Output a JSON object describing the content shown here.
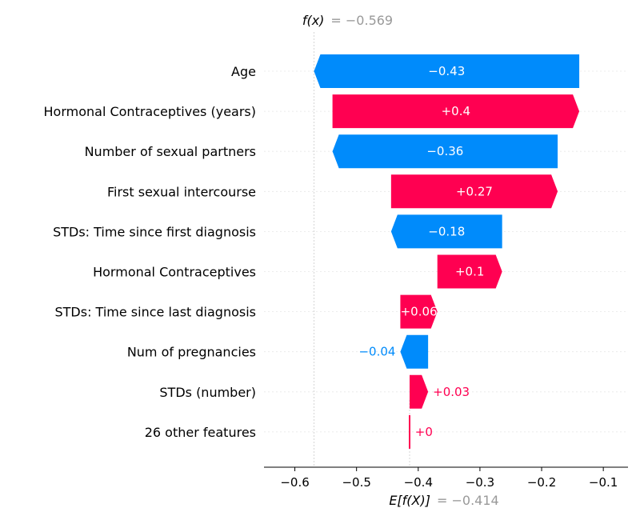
{
  "chart_data": {
    "type": "waterfall",
    "fx": {
      "symbol": "f(x)",
      "value": "= −0.569",
      "x": -0.569
    },
    "ex": {
      "symbol": "E[f(X)]",
      "value": "= −0.414",
      "x": -0.414
    },
    "xlim": [
      -0.65,
      -0.06
    ],
    "xticks": [
      -0.6,
      -0.5,
      -0.4,
      -0.3,
      -0.2,
      -0.1
    ],
    "xtick_labels": [
      "−0.6",
      "−0.5",
      "−0.4",
      "−0.3",
      "−0.2",
      "−0.1"
    ],
    "features": [
      {
        "name": "Age",
        "start": -0.139,
        "end": -0.569,
        "label": "−0.43"
      },
      {
        "name": "Hormonal Contraceptives (years)",
        "start": -0.539,
        "end": -0.139,
        "label": "+0.4"
      },
      {
        "name": "Number of sexual partners",
        "start": -0.174,
        "end": -0.539,
        "label": "−0.36"
      },
      {
        "name": "First sexual intercourse",
        "start": -0.444,
        "end": -0.174,
        "label": "+0.27"
      },
      {
        "name": "STDs: Time since first diagnosis",
        "start": -0.264,
        "end": -0.444,
        "label": "−0.18"
      },
      {
        "name": "Hormonal Contraceptives",
        "start": -0.369,
        "end": -0.264,
        "label": "+0.1"
      },
      {
        "name": "STDs: Time since last diagnosis",
        "start": -0.429,
        "end": -0.369,
        "label": "+0.06"
      },
      {
        "name": "Num of pregnancies",
        "start": -0.384,
        "end": -0.429,
        "label": "−0.04"
      },
      {
        "name": "STDs (number)",
        "start": -0.414,
        "end": -0.384,
        "label": "+0.03"
      },
      {
        "name": "26 other features",
        "start": -0.414,
        "end": -0.413,
        "label": "+0"
      }
    ],
    "colors": {
      "positive": "#ff0051",
      "negative": "#008bfb",
      "axis": "#000000",
      "guide": "#cccccc"
    }
  }
}
